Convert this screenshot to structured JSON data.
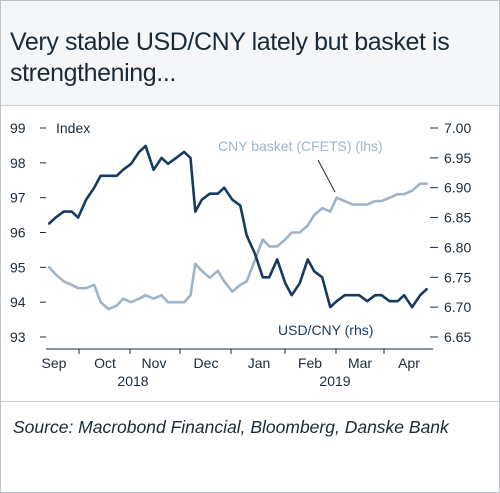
{
  "title": "Very stable USD/CNY lately but basket is strengthening...",
  "source": "Source: Macrobond Financial, Bloomberg, Danske Bank",
  "chart_data": {
    "type": "line",
    "left_axis_unit": "Index",
    "ylim_left": [
      93,
      99
    ],
    "yticks_left": [
      "99",
      "98",
      "97",
      "96",
      "95",
      "94",
      "93"
    ],
    "ylim_right": [
      6.65,
      7.0
    ],
    "yticks_right": [
      "7.00",
      "6.95",
      "6.90",
      "6.85",
      "6.80",
      "6.75",
      "6.70",
      "6.65"
    ],
    "x_months": [
      "Sep",
      "Oct",
      "Nov",
      "Dec",
      "Jan",
      "Feb",
      "Mar",
      "Apr"
    ],
    "x_years": [
      "2018",
      "2019"
    ],
    "xlim": [
      "2018-09-01",
      "2019-04-30"
    ],
    "grid": false,
    "colors": {
      "cny_basket": "#9fb4c8",
      "usd_cny": "#173b5e",
      "text": "#1b2a38"
    },
    "series": [
      {
        "name": "CNY basket (CFETS) (lhs)",
        "axis": "left",
        "x": [
          "2018-09-03",
          "2018-09-07",
          "2018-09-12",
          "2018-09-17",
          "2018-09-21",
          "2018-09-26",
          "2018-10-01",
          "2018-10-05",
          "2018-10-10",
          "2018-10-15",
          "2018-10-19",
          "2018-10-24",
          "2018-10-29",
          "2018-11-02",
          "2018-11-07",
          "2018-11-12",
          "2018-11-16",
          "2018-11-21",
          "2018-11-26",
          "2018-11-30",
          "2018-12-03",
          "2018-12-07",
          "2018-12-12",
          "2018-12-17",
          "2018-12-21",
          "2018-12-26",
          "2018-12-31",
          "2019-01-04",
          "2019-01-09",
          "2019-01-14",
          "2019-01-18",
          "2019-01-23",
          "2019-01-28",
          "2019-02-01",
          "2019-02-06",
          "2019-02-11",
          "2019-02-15",
          "2019-02-20",
          "2019-02-25",
          "2019-03-01",
          "2019-03-06",
          "2019-03-11",
          "2019-03-15",
          "2019-03-20",
          "2019-03-25",
          "2019-03-29",
          "2019-04-03",
          "2019-04-08",
          "2019-04-12",
          "2019-04-17",
          "2019-04-22",
          "2019-04-26"
        ],
        "y": [
          95.0,
          94.8,
          94.6,
          94.5,
          94.4,
          94.4,
          94.5,
          94.0,
          93.8,
          93.9,
          94.1,
          94.0,
          94.1,
          94.2,
          94.1,
          94.2,
          94.0,
          94.0,
          94.0,
          94.2,
          95.1,
          94.9,
          94.7,
          94.9,
          94.6,
          94.3,
          94.5,
          94.6,
          95.2,
          95.8,
          95.6,
          95.6,
          95.8,
          96.0,
          96.0,
          96.2,
          96.5,
          96.7,
          96.6,
          97.0,
          96.9,
          96.8,
          96.8,
          96.8,
          96.9,
          96.9,
          97.0,
          97.1,
          97.1,
          97.2,
          97.4,
          97.4
        ]
      },
      {
        "name": "USD/CNY (rhs)",
        "axis": "right",
        "x": [
          "2018-09-03",
          "2018-09-07",
          "2018-09-12",
          "2018-09-17",
          "2018-09-21",
          "2018-09-26",
          "2018-10-01",
          "2018-10-05",
          "2018-10-10",
          "2018-10-15",
          "2018-10-19",
          "2018-10-24",
          "2018-10-29",
          "2018-11-02",
          "2018-11-07",
          "2018-11-12",
          "2018-11-16",
          "2018-11-21",
          "2018-11-26",
          "2018-11-30",
          "2018-12-03",
          "2018-12-07",
          "2018-12-12",
          "2018-12-17",
          "2018-12-21",
          "2018-12-26",
          "2018-12-31",
          "2019-01-04",
          "2019-01-09",
          "2019-01-14",
          "2019-01-18",
          "2019-01-23",
          "2019-01-28",
          "2019-02-01",
          "2019-02-06",
          "2019-02-11",
          "2019-02-15",
          "2019-02-20",
          "2019-02-25",
          "2019-03-01",
          "2019-03-06",
          "2019-03-11",
          "2019-03-15",
          "2019-03-20",
          "2019-03-25",
          "2019-03-29",
          "2019-04-03",
          "2019-04-08",
          "2019-04-12",
          "2019-04-17",
          "2019-04-22",
          "2019-04-26"
        ],
        "y": [
          6.84,
          6.85,
          6.86,
          6.86,
          6.85,
          6.88,
          6.9,
          6.92,
          6.92,
          6.92,
          6.93,
          6.94,
          6.96,
          6.97,
          6.93,
          6.95,
          6.94,
          6.95,
          6.96,
          6.95,
          6.86,
          6.88,
          6.89,
          6.89,
          6.9,
          6.88,
          6.87,
          6.82,
          6.79,
          6.75,
          6.75,
          6.78,
          6.74,
          6.72,
          6.74,
          6.78,
          6.76,
          6.75,
          6.7,
          6.71,
          6.72,
          6.72,
          6.72,
          6.71,
          6.72,
          6.72,
          6.71,
          6.71,
          6.72,
          6.7,
          6.72,
          6.73
        ]
      }
    ]
  }
}
